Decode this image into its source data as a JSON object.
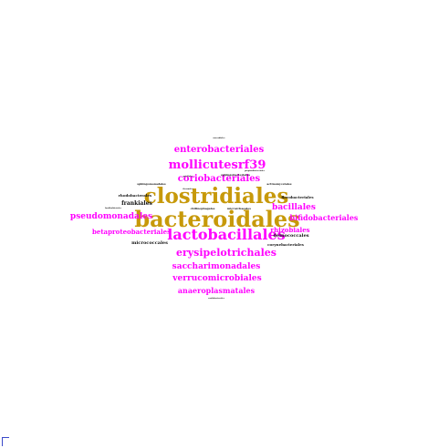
{
  "word_cloud": {
    "words": [
      {
        "id": "w-clostridiales",
        "text": "clostridiales",
        "color": "gold"
      },
      {
        "id": "w-bacteroidales",
        "text": "bacteroidales",
        "color": "gold"
      },
      {
        "id": "w-lactobacillales",
        "text": "lactobacillales",
        "color": "magenta"
      },
      {
        "id": "w-mollicutesrf39",
        "text": "mollicutesrf39",
        "color": "magenta"
      },
      {
        "id": "w-enterobacteriales",
        "text": "enterobacteriales",
        "color": "magenta"
      },
      {
        "id": "w-coriobacteriales",
        "text": "coriobacteriales",
        "color": "magenta"
      },
      {
        "id": "w-erysipelotrichales",
        "text": "erysipelotrichales",
        "color": "magenta"
      },
      {
        "id": "w-saccharimonadales",
        "text": "saccharimonadales",
        "color": "magenta"
      },
      {
        "id": "w-verrucomicrobiales",
        "text": "verrucomicrobiales",
        "color": "magenta"
      },
      {
        "id": "w-anaeroplasmatales",
        "text": "anaeroplasmatales",
        "color": "magenta"
      },
      {
        "id": "w-pseudomonadales",
        "text": "pseudomonadales",
        "color": "magenta"
      },
      {
        "id": "w-bacillales",
        "text": "bacillales",
        "color": "magenta"
      },
      {
        "id": "w-bifidobacteriales",
        "text": "bifidobacteriales",
        "color": "magenta"
      },
      {
        "id": "w-betaproteobacteriales",
        "text": "betaproteobacteriales",
        "color": "magenta"
      },
      {
        "id": "w-rhizobiales",
        "text": "rhizobiales",
        "color": "magenta"
      },
      {
        "id": "w-frankiales",
        "text": "frankiales",
        "color": "black"
      },
      {
        "id": "w-micrococcales",
        "text": "micrococcales",
        "color": "black"
      },
      {
        "id": "w-deinococcales",
        "text": "deinococcales",
        "color": "black"
      },
      {
        "id": "w-corynebacteriales",
        "text": "corynebacteriales",
        "color": "black"
      },
      {
        "id": "w-flavobacteriales",
        "text": "flavobacteriales",
        "color": "black"
      },
      {
        "id": "w-rhodobacterales",
        "text": "rhodobacterales",
        "color": "black"
      },
      {
        "id": "w-chitinophagales",
        "text": "chitinophagales",
        "color": "black"
      },
      {
        "id": "w-micrarchaeales",
        "text": "micrarchaeales",
        "color": "black"
      },
      {
        "id": "w-actinomycetales",
        "text": "actinomycetales",
        "color": "black"
      },
      {
        "id": "w-sphingomonadales",
        "text": "sphingomonadales",
        "color": "black"
      },
      {
        "id": "w-sphingobacteriales",
        "text": "sphingobacteriales",
        "color": "black"
      },
      {
        "id": "w-gaiellales",
        "text": "gaiellales",
        "color": "black"
      },
      {
        "id": "w-propionibacteriales",
        "text": "propionibacteriales",
        "color": "black"
      },
      {
        "id": "w-nocardiales",
        "text": "nocardiales",
        "color": "black"
      },
      {
        "id": "w-burkholderiales",
        "text": "burkholderiales",
        "color": "black"
      },
      {
        "id": "w-thermales",
        "text": "thermales",
        "color": "black"
      },
      {
        "id": "w-caulobacterales",
        "text": "caulobacterales",
        "color": "black"
      }
    ]
  }
}
